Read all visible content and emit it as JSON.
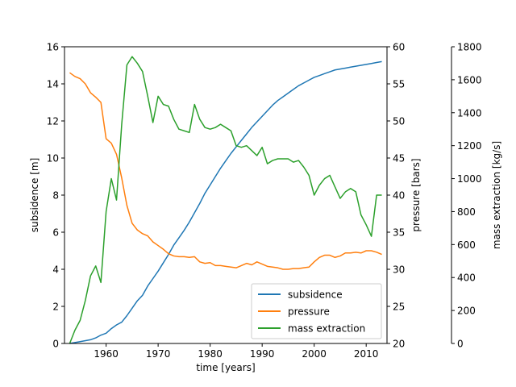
{
  "chart_data": {
    "type": "line",
    "x_axis": {
      "label": "time [years]",
      "range": [
        1952,
        2014
      ],
      "ticks": [
        1960,
        1970,
        1980,
        1990,
        2000,
        2010
      ]
    },
    "y_axes": [
      {
        "id": "subsidence",
        "label": "subsidence [m]",
        "side": "left",
        "range": [
          0,
          16
        ],
        "ticks": [
          0,
          2,
          4,
          6,
          8,
          10,
          12,
          14,
          16
        ]
      },
      {
        "id": "pressure",
        "label": "pressure [bars]",
        "side": "right",
        "range": [
          20,
          60
        ],
        "ticks": [
          20,
          25,
          30,
          35,
          40,
          45,
          50,
          55,
          60
        ]
      },
      {
        "id": "mass",
        "label": "mass extraction [kg/s]",
        "side": "right-offset",
        "range": [
          0,
          1800
        ],
        "ticks": [
          0,
          200,
          400,
          600,
          800,
          1000,
          1200,
          1400,
          1600,
          1800
        ]
      }
    ],
    "series": [
      {
        "name": "subsidence",
        "axis": "subsidence",
        "color": "#1f77b4",
        "x": [
          1953,
          1955,
          1957,
          1958,
          1959,
          1960,
          1961,
          1962,
          1963,
          1964,
          1965,
          1966,
          1967,
          1968,
          1969,
          1970,
          1971,
          1972,
          1973,
          1974,
          1975,
          1976,
          1977,
          1978,
          1979,
          1980,
          1981,
          1982,
          1983,
          1984,
          1985,
          1986,
          1987,
          1988,
          1989,
          1990,
          1991,
          1992,
          1993,
          1994,
          1995,
          1996,
          1997,
          1998,
          1999,
          2000,
          2001,
          2002,
          2003,
          2004,
          2005,
          2006,
          2007,
          2008,
          2009,
          2010,
          2011,
          2012,
          2013
        ],
        "values": [
          0.0,
          0.1,
          0.2,
          0.3,
          0.45,
          0.55,
          0.8,
          1.0,
          1.15,
          1.5,
          1.9,
          2.3,
          2.6,
          3.1,
          3.5,
          3.9,
          4.35,
          4.8,
          5.3,
          5.7,
          6.1,
          6.55,
          7.05,
          7.55,
          8.1,
          8.55,
          9.0,
          9.45,
          9.85,
          10.25,
          10.6,
          10.95,
          11.3,
          11.65,
          11.95,
          12.25,
          12.55,
          12.85,
          13.1,
          13.3,
          13.5,
          13.7,
          13.9,
          14.05,
          14.2,
          14.35,
          14.45,
          14.55,
          14.65,
          14.75,
          14.8,
          14.85,
          14.9,
          14.95,
          15.0,
          15.05,
          15.1,
          15.15,
          15.2
        ]
      },
      {
        "name": "pressure",
        "axis": "pressure",
        "color": "#ff7f0e",
        "x": [
          1953,
          1954,
          1955,
          1956,
          1957,
          1958,
          1959,
          1960,
          1961,
          1962,
          1963,
          1964,
          1965,
          1966,
          1967,
          1968,
          1969,
          1970,
          1971,
          1972,
          1973,
          1974,
          1975,
          1976,
          1977,
          1978,
          1979,
          1980,
          1981,
          1982,
          1983,
          1984,
          1985,
          1986,
          1987,
          1988,
          1989,
          1990,
          1991,
          1992,
          1993,
          1994,
          1995,
          1996,
          1997,
          1998,
          1999,
          2000,
          2001,
          2002,
          2003,
          2004,
          2005,
          2006,
          2007,
          2008,
          2009,
          2010,
          2011,
          2012,
          2013
        ],
        "values": [
          56.5,
          56.0,
          55.7,
          55.0,
          53.8,
          53.2,
          52.5,
          47.6,
          47.0,
          45.5,
          42.3,
          38.6,
          36.2,
          35.3,
          34.8,
          34.5,
          33.7,
          33.2,
          32.7,
          32.1,
          31.8,
          31.7,
          31.7,
          31.6,
          31.7,
          31.0,
          30.8,
          30.9,
          30.5,
          30.5,
          30.4,
          30.3,
          30.2,
          30.5,
          30.8,
          30.6,
          31.0,
          30.7,
          30.4,
          30.3,
          30.2,
          30.0,
          30.0,
          30.1,
          30.1,
          30.2,
          30.3,
          31.0,
          31.6,
          31.9,
          31.9,
          31.6,
          31.8,
          32.2,
          32.2,
          32.3,
          32.2,
          32.5,
          32.5,
          32.3,
          32.0
        ]
      },
      {
        "name": "mass extraction",
        "axis": "mass",
        "color": "#2ca02c",
        "x": [
          1953,
          1954,
          1955,
          1956,
          1957,
          1958,
          1959,
          1960,
          1961,
          1962,
          1963,
          1964,
          1965,
          1966,
          1967,
          1968,
          1969,
          1970,
          1971,
          1972,
          1973,
          1974,
          1975,
          1976,
          1977,
          1978,
          1979,
          1980,
          1981,
          1982,
          1983,
          1984,
          1985,
          1986,
          1987,
          1988,
          1989,
          1990,
          1991,
          1992,
          1993,
          1994,
          1995,
          1996,
          1997,
          1998,
          1999,
          2000,
          2001,
          2002,
          2003,
          2004,
          2005,
          2006,
          2007,
          2008,
          2009,
          2010,
          2011,
          2012,
          2013
        ],
        "values": [
          0,
          80,
          140,
          260,
          410,
          470,
          370,
          800,
          1000,
          870,
          1330,
          1690,
          1740,
          1700,
          1650,
          1500,
          1340,
          1500,
          1450,
          1440,
          1360,
          1300,
          1290,
          1280,
          1450,
          1360,
          1310,
          1300,
          1310,
          1330,
          1310,
          1290,
          1200,
          1190,
          1200,
          1170,
          1140,
          1190,
          1090,
          1110,
          1120,
          1120,
          1120,
          1100,
          1110,
          1070,
          1020,
          900,
          960,
          1000,
          1020,
          950,
          880,
          920,
          940,
          920,
          780,
          720,
          650,
          900,
          900
        ]
      }
    ],
    "legend": {
      "position": "lower-right",
      "entries": [
        "subsidence",
        "pressure",
        "mass extraction"
      ]
    },
    "grid": false
  }
}
